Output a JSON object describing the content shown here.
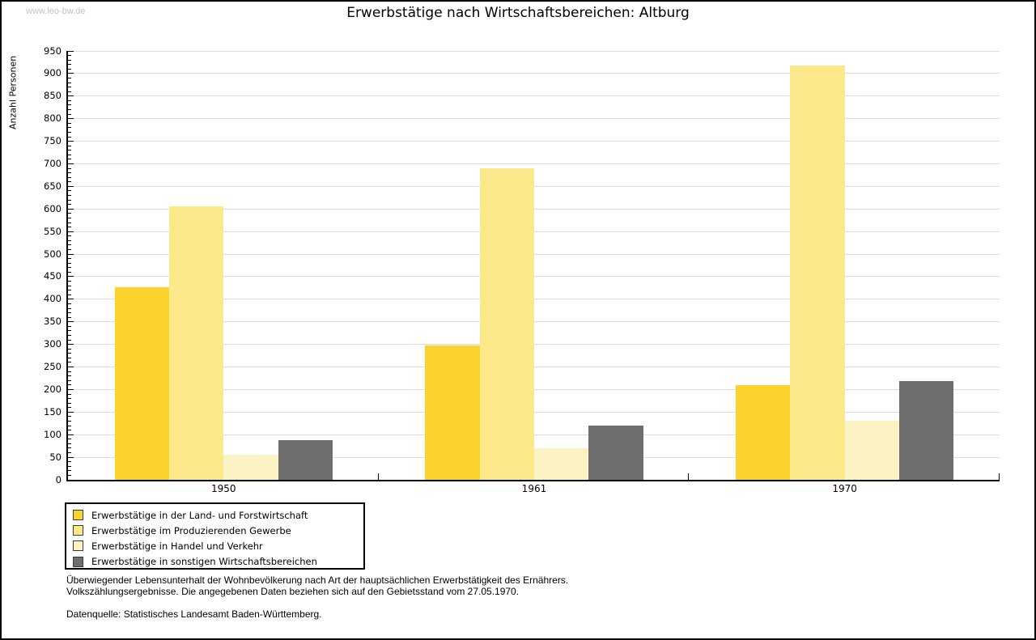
{
  "watermark": "www.leo-bw.de",
  "title": "Erwerbstätige nach Wirtschaftsbereichen: Altburg",
  "chart_data": {
    "type": "bar",
    "title": "Erwerbstätige nach Wirtschaftsbereichen: Altburg",
    "ylabel": "Anzahl Personen",
    "xlabel": "",
    "categories": [
      "1950",
      "1961",
      "1970"
    ],
    "series": [
      {
        "name": "Erwerbstätige in der Land- und Forstwirtschaft",
        "color": "#fcd32d",
        "values": [
          427,
          297,
          210
        ]
      },
      {
        "name": "Erwerbstätige im Produzierenden Gewerbe",
        "color": "#fce98b",
        "values": [
          606,
          690,
          918
        ]
      },
      {
        "name": "Erwerbstätige in Handel und Verkehr",
        "color": "#fcf3c5",
        "values": [
          56,
          70,
          130
        ]
      },
      {
        "name": "Erwerbstätige in sonstigen Wirtschaftsbereichen",
        "color": "#6e6e6e",
        "values": [
          88,
          120,
          218
        ]
      }
    ],
    "ylim": [
      0,
      950
    ],
    "ytick_step": 50,
    "minor_tick_step": 10,
    "grid": true,
    "legend_position": "bottom-left"
  },
  "footnotes": {
    "line1": "Überwiegender Lebensunterhalt der Wohnbevölkerung nach Art der hauptsächlichen Erwerbstätigkeit des Ernährers.",
    "line2": "Volkszählungsergebnisse. Die angegebenen Daten beziehen sich auf den Gebietsstand vom 27.05.1970.",
    "line3": "Datenquelle: Statistisches Landesamt Baden-Württemberg."
  },
  "colors": {
    "grid": "#dddddd",
    "axis": "#000000",
    "watermark": "#c3c3c3",
    "background": "#ffffff"
  }
}
